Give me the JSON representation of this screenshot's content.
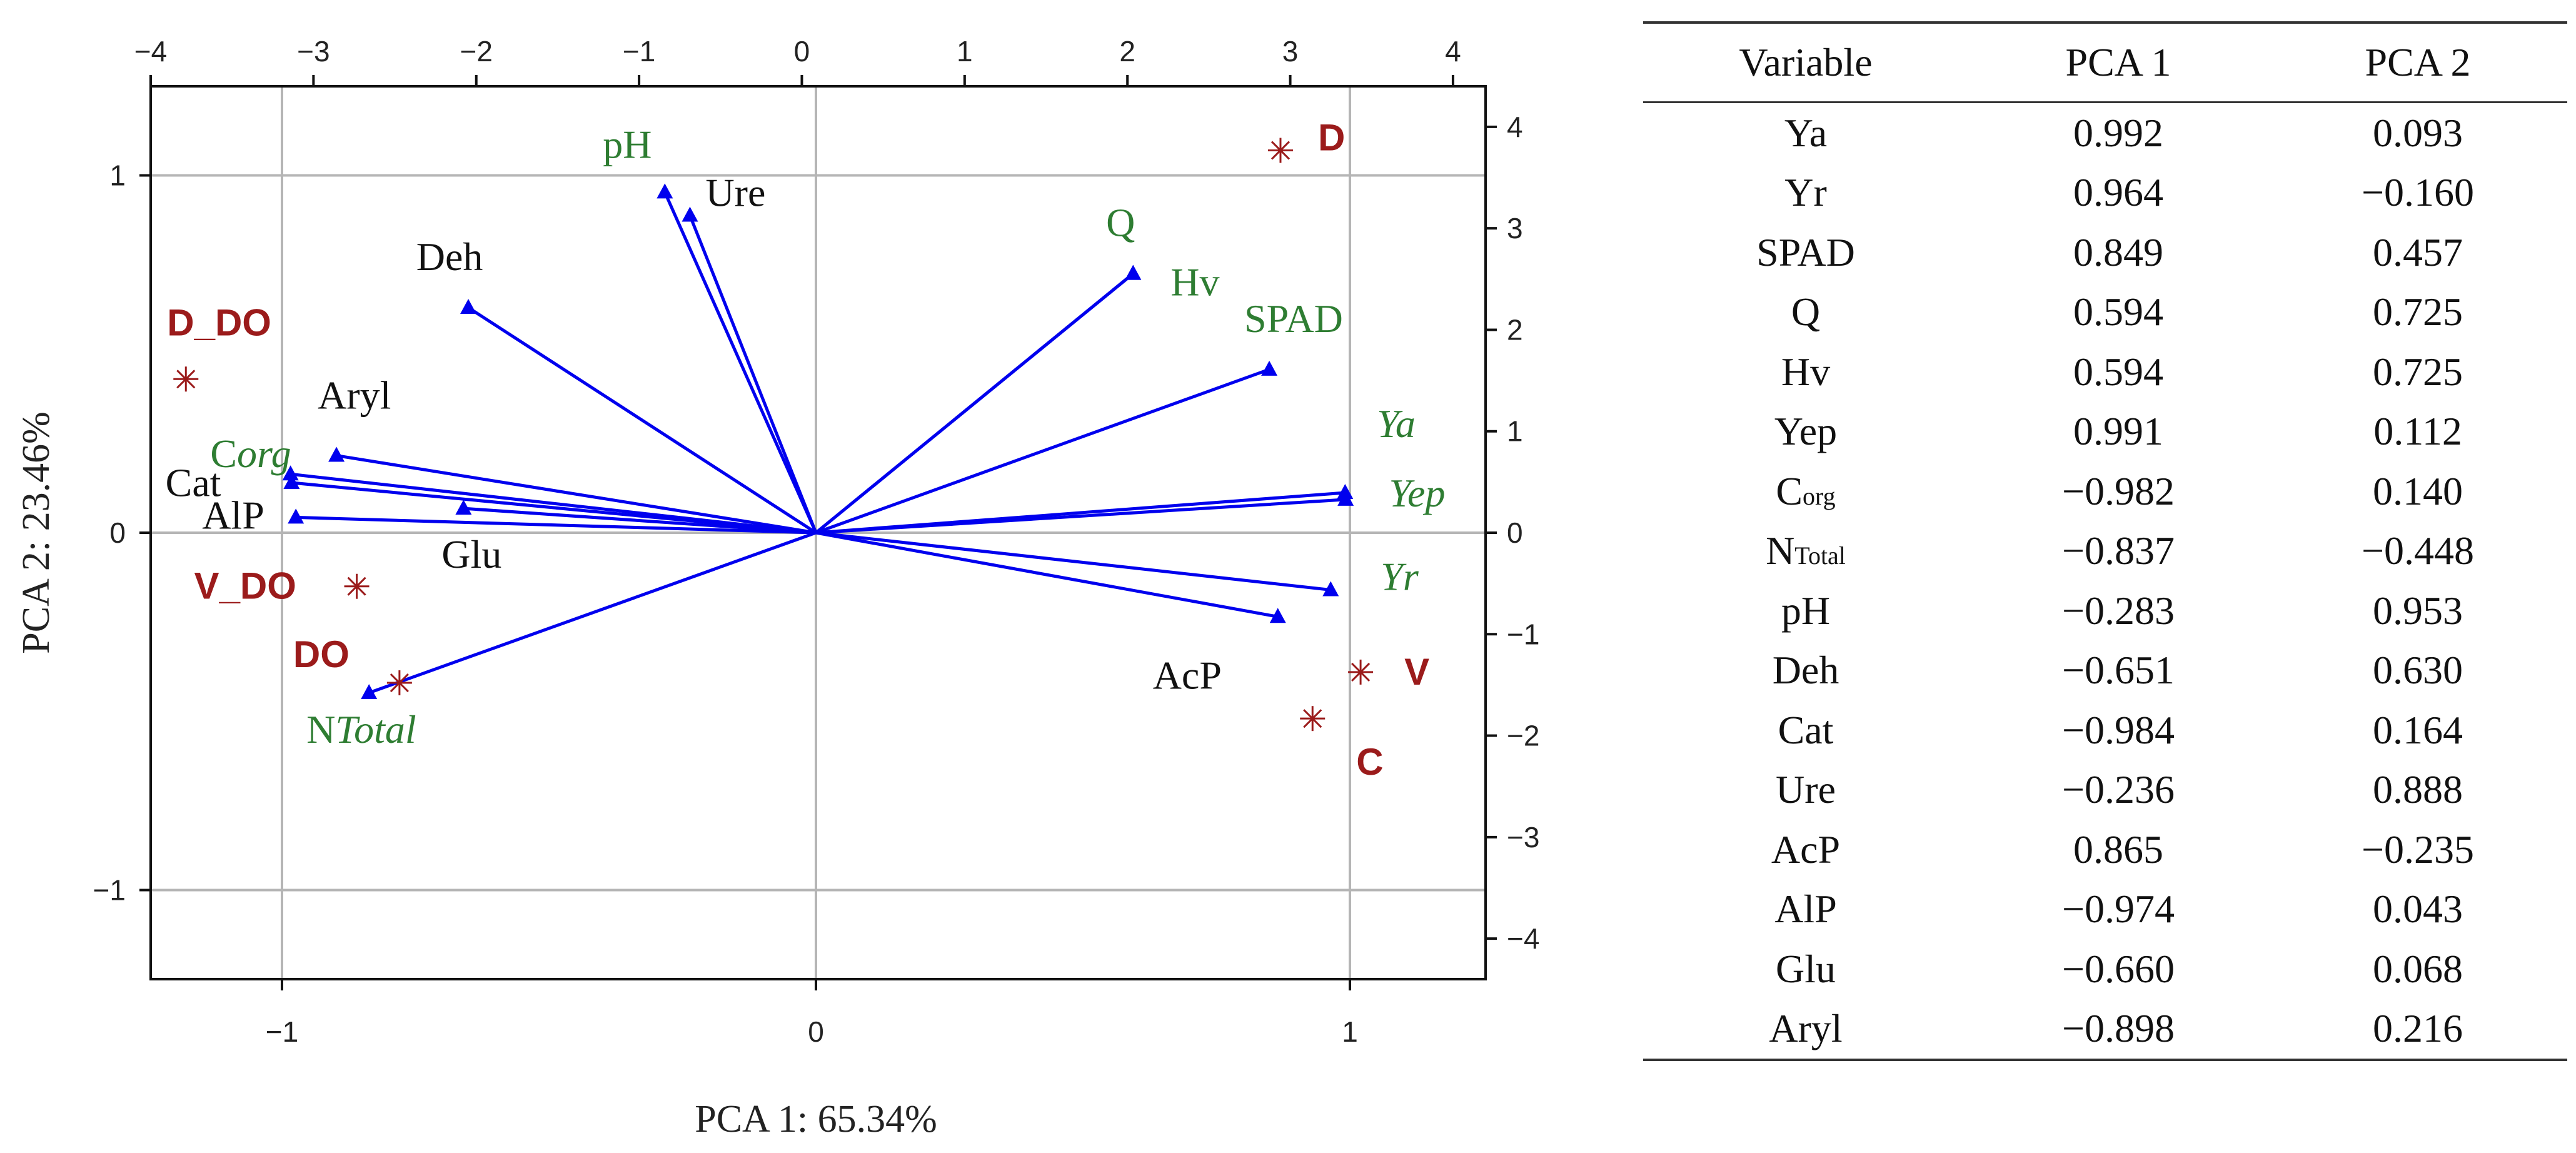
{
  "chart_data": [
    {
      "type": "scatter",
      "subtype": "pca-biplot",
      "title": "",
      "xlabel": "PCA 1: 65.34%",
      "ylabel": "PCA 2: 23.46%",
      "xlim": [
        -1.25,
        1.25
      ],
      "ylim": [
        -1.25,
        1.25
      ],
      "xticks": [
        -1,
        0,
        1
      ],
      "yticks": [
        -1,
        0,
        1
      ],
      "top_axis": {
        "ticks": [
          -4,
          -3,
          -2,
          -1,
          0,
          1,
          2,
          3,
          4
        ],
        "range": [
          -4.0,
          4.2
        ]
      },
      "right_axis": {
        "ticks": [
          -4,
          -3,
          -2,
          -1,
          0,
          1,
          2,
          3,
          4
        ],
        "range": [
          -4.4,
          4.4
        ]
      },
      "grid": true,
      "colors": {
        "vector": "#0000ee",
        "variable_label_green": "#2e7d32",
        "variable_label_dark": "#111111",
        "observation": "#9b1b1b"
      },
      "variables": [
        {
          "name": "Ya",
          "x": 0.992,
          "y": 0.093,
          "label_color": "green",
          "italic": true
        },
        {
          "name": "Yr",
          "x": 0.964,
          "y": -0.16,
          "label_color": "green",
          "italic": true
        },
        {
          "name": "SPAD",
          "x": 0.849,
          "y": 0.457,
          "label_color": "green",
          "italic": false
        },
        {
          "name": "Q",
          "x": 0.594,
          "y": 0.725,
          "label_color": "green",
          "italic": false
        },
        {
          "name": "Hv",
          "x": 0.594,
          "y": 0.725,
          "label_color": "green",
          "italic": false
        },
        {
          "name": "Yep",
          "x": 0.991,
          "y": 0.112,
          "label_color": "green",
          "italic": true
        },
        {
          "name": "Corg",
          "x": -0.982,
          "y": 0.14,
          "label_color": "green",
          "italic": true
        },
        {
          "name": "NTotal",
          "x": -0.837,
          "y": -0.448,
          "label_color": "green",
          "italic": true
        },
        {
          "name": "pH",
          "x": -0.283,
          "y": 0.953,
          "label_color": "green",
          "italic": false
        },
        {
          "name": "Deh",
          "x": -0.651,
          "y": 0.63,
          "label_color": "dark",
          "italic": false
        },
        {
          "name": "Cat",
          "x": -0.984,
          "y": 0.164,
          "label_color": "dark",
          "italic": false
        },
        {
          "name": "Ure",
          "x": -0.236,
          "y": 0.888,
          "label_color": "dark",
          "italic": false
        },
        {
          "name": "AcP",
          "x": 0.865,
          "y": -0.235,
          "label_color": "dark",
          "italic": false
        },
        {
          "name": "AlP",
          "x": -0.974,
          "y": 0.043,
          "label_color": "dark",
          "italic": false
        },
        {
          "name": "Glu",
          "x": -0.66,
          "y": 0.068,
          "label_color": "dark",
          "italic": false
        },
        {
          "name": "Aryl",
          "x": -0.898,
          "y": 0.216,
          "label_color": "dark",
          "italic": false
        }
      ],
      "observations": [
        {
          "name": "D",
          "x": 0.87,
          "y": 1.07
        },
        {
          "name": "D_DO",
          "x": -1.18,
          "y": 0.43
        },
        {
          "name": "V_DO",
          "x": -0.86,
          "y": -0.15
        },
        {
          "name": "DO",
          "x": -0.78,
          "y": -0.42
        },
        {
          "name": "V",
          "x": 1.02,
          "y": -0.39
        },
        {
          "name": "C",
          "x": 0.93,
          "y": -0.52
        }
      ]
    },
    {
      "type": "table",
      "columns": [
        "Variable",
        "PCA 1",
        "PCA 2"
      ],
      "rows": [
        {
          "variable": "Ya",
          "pca1": "0.992",
          "pca2": "0.093"
        },
        {
          "variable": "Yr",
          "pca1": "0.964",
          "pca2": "−0.160"
        },
        {
          "variable": "SPAD",
          "pca1": "0.849",
          "pca2": "0.457"
        },
        {
          "variable": "Q",
          "pca1": "0.594",
          "pca2": "0.725"
        },
        {
          "variable": "Hv",
          "pca1": "0.594",
          "pca2": "0.725"
        },
        {
          "variable": "Yep",
          "pca1": "0.991",
          "pca2": "0.112"
        },
        {
          "variable": "C",
          "sub": "org",
          "pca1": "−0.982",
          "pca2": "0.140"
        },
        {
          "variable": "N",
          "sub": "Total",
          "pca1": "−0.837",
          "pca2": "−0.448"
        },
        {
          "variable": "pH",
          "pca1": "−0.283",
          "pca2": "0.953"
        },
        {
          "variable": "Deh",
          "pca1": "−0.651",
          "pca2": "0.630"
        },
        {
          "variable": "Cat",
          "pca1": "−0.984",
          "pca2": "0.164"
        },
        {
          "variable": "Ure",
          "pca1": "−0.236",
          "pca2": "0.888"
        },
        {
          "variable": "AcP",
          "pca1": "0.865",
          "pca2": "−0.235"
        },
        {
          "variable": "AlP",
          "pca1": "−0.974",
          "pca2": "0.043"
        },
        {
          "variable": "Glu",
          "pca1": "−0.660",
          "pca2": "0.068"
        },
        {
          "variable": "Aryl",
          "pca1": "−0.898",
          "pca2": "0.216"
        }
      ]
    }
  ]
}
